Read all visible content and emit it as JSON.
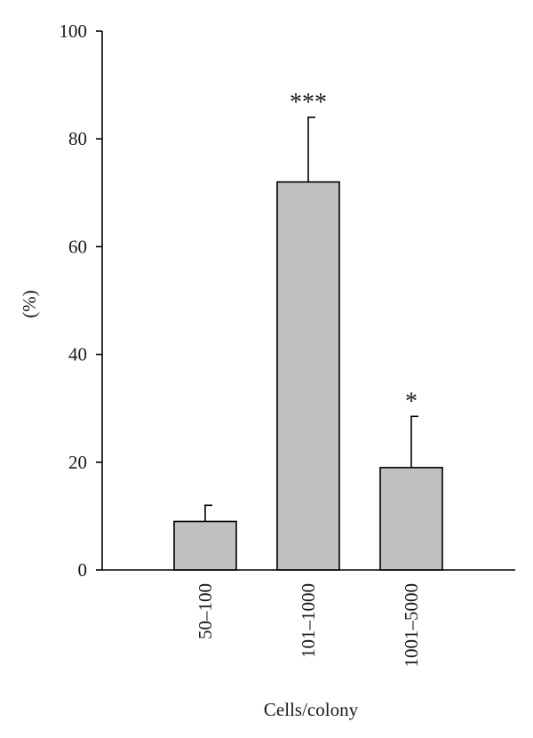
{
  "chart_data": {
    "type": "bar",
    "title": "",
    "xlabel": "Cells/colony",
    "ylabel": "(%)",
    "ylim": [
      0,
      100
    ],
    "yticks": [
      0,
      20,
      40,
      60,
      80,
      100
    ],
    "categories": [
      "50–100",
      "101–1000",
      "1001–5000"
    ],
    "values": [
      9,
      72,
      19
    ],
    "error_upper": [
      3,
      12,
      9.5
    ],
    "annotations": [
      "",
      "***",
      "*"
    ],
    "bar_color": "#c0c0c0",
    "edge_color": "#000000",
    "grid": false,
    "legend": "none"
  }
}
